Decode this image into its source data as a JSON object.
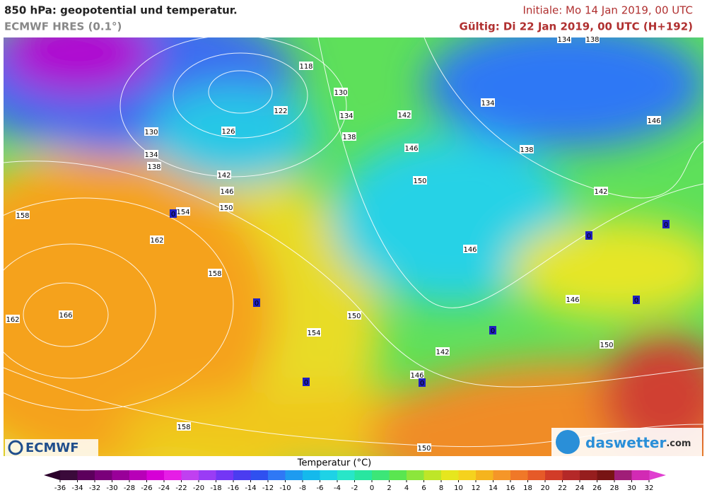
{
  "header": {
    "title": "850 hPa: geopotential und temperatur.",
    "model": "ECMWF HRES (0.1°)",
    "init": "Initiale: Mo 14 Jan 2019, 00 UTC",
    "valid": "Gültig: Di 22 Jan 2019, 00 UTC (H+192)"
  },
  "map": {
    "contour_labels": [
      "134",
      "138",
      "118",
      "130",
      "122",
      "134",
      "142",
      "134",
      "146",
      "130",
      "126",
      "138",
      "146",
      "134",
      "138",
      "138",
      "142",
      "150",
      "146",
      "142",
      "150",
      "154",
      "0",
      "158",
      "0",
      "0",
      "162",
      "146",
      "158",
      "0",
      "146",
      "0",
      "166",
      "150",
      "162",
      "154",
      "0",
      "150",
      "142",
      "146",
      "0",
      "0",
      "158",
      "150"
    ]
  },
  "logos": {
    "ecmwf": "ECMWF",
    "daswetter": "daswetter",
    "domain": ".com"
  },
  "legend": {
    "title": "Temperatur (°C)",
    "ticks": [
      -36,
      -34,
      -32,
      -30,
      -28,
      -26,
      -24,
      -22,
      -20,
      -18,
      -16,
      -14,
      -12,
      -10,
      -8,
      -6,
      -4,
      -2,
      0,
      2,
      4,
      6,
      8,
      10,
      12,
      14,
      16,
      18,
      20,
      22,
      24,
      26,
      28,
      30,
      32
    ]
  }
}
